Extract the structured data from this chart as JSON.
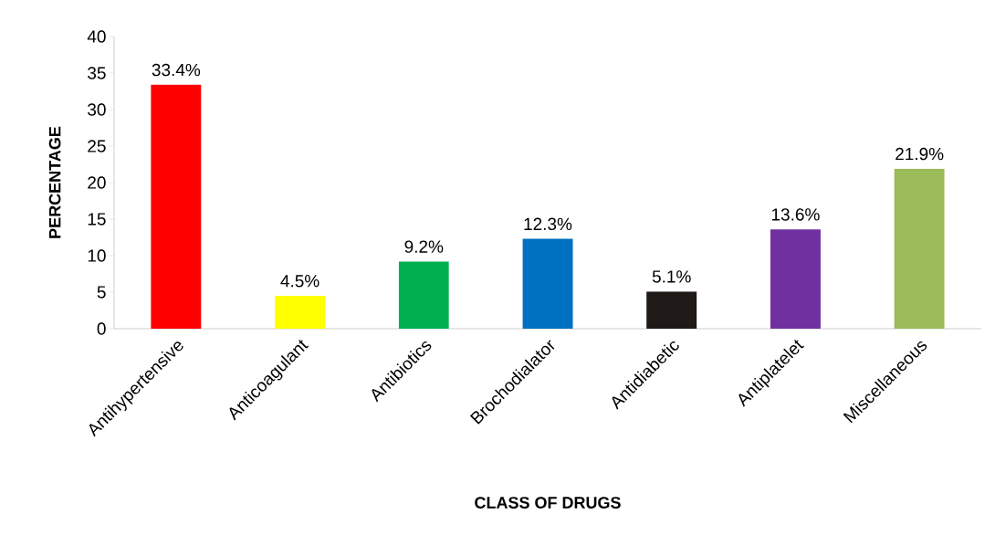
{
  "chart_data": {
    "type": "bar",
    "xlabel": "CLASS OF DRUGS",
    "ylabel": "PERCENTAGE",
    "categories": [
      "Antihypertensive",
      "Anticoagulant",
      "Antibiotics",
      "Brochodialator",
      "Antidiabetic",
      "Antiplatelet",
      "Miscellaneous"
    ],
    "values": [
      33.4,
      4.5,
      9.2,
      12.3,
      5.1,
      13.6,
      21.9
    ],
    "colors": [
      "#ff0000",
      "#ffff00",
      "#00b050",
      "#0070c0",
      "#1f1a17",
      "#7030a0",
      "#9bbb59"
    ],
    "value_labels": [
      "33.4%",
      "4.5%",
      "9.2%",
      "12.3%",
      "5.1%",
      "13.6%",
      "21.9%"
    ],
    "ylim": [
      0,
      40
    ],
    "yticks": [
      0,
      5,
      10,
      15,
      20,
      25,
      30,
      35,
      40
    ],
    "grid": false
  }
}
